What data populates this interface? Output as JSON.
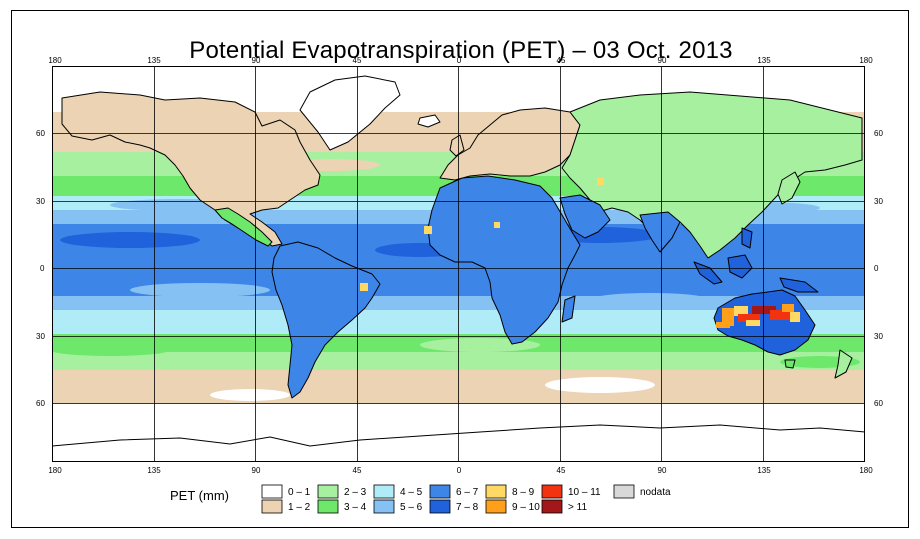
{
  "title": "Potential Evapotranspiration (PET) – 03 Oct. 2013",
  "axes": {
    "lon_labels": [
      "180",
      "135",
      "90",
      "45",
      "0",
      "45",
      "90",
      "135",
      "180"
    ],
    "lat_labels": [
      "60",
      "30",
      "0",
      "30",
      "60"
    ]
  },
  "legend": {
    "title": "PET (mm)",
    "classes": [
      {
        "label": "0 – 1",
        "color": "#ffffff"
      },
      {
        "label": "1 – 2",
        "color": "#ebd3b3"
      },
      {
        "label": "2 – 3",
        "color": "#a6f0a0"
      },
      {
        "label": "3 – 4",
        "color": "#6ee86a"
      },
      {
        "label": "4 – 5",
        "color": "#b0ecf7"
      },
      {
        "label": "5 – 6",
        "color": "#86c1f4"
      },
      {
        "label": "6 – 7",
        "color": "#3d86e8"
      },
      {
        "label": "7 – 8",
        "color": "#1f62dc"
      },
      {
        "label": "8 – 9",
        "color": "#ffd964"
      },
      {
        "label": "9 – 10",
        "color": "#ff9f1a"
      },
      {
        "label": "10 – 11",
        "color": "#f33210"
      },
      {
        "label": "> 11",
        "color": "#a3161a"
      },
      {
        "label": "nodata",
        "color": "#d8d8d8"
      }
    ]
  }
}
